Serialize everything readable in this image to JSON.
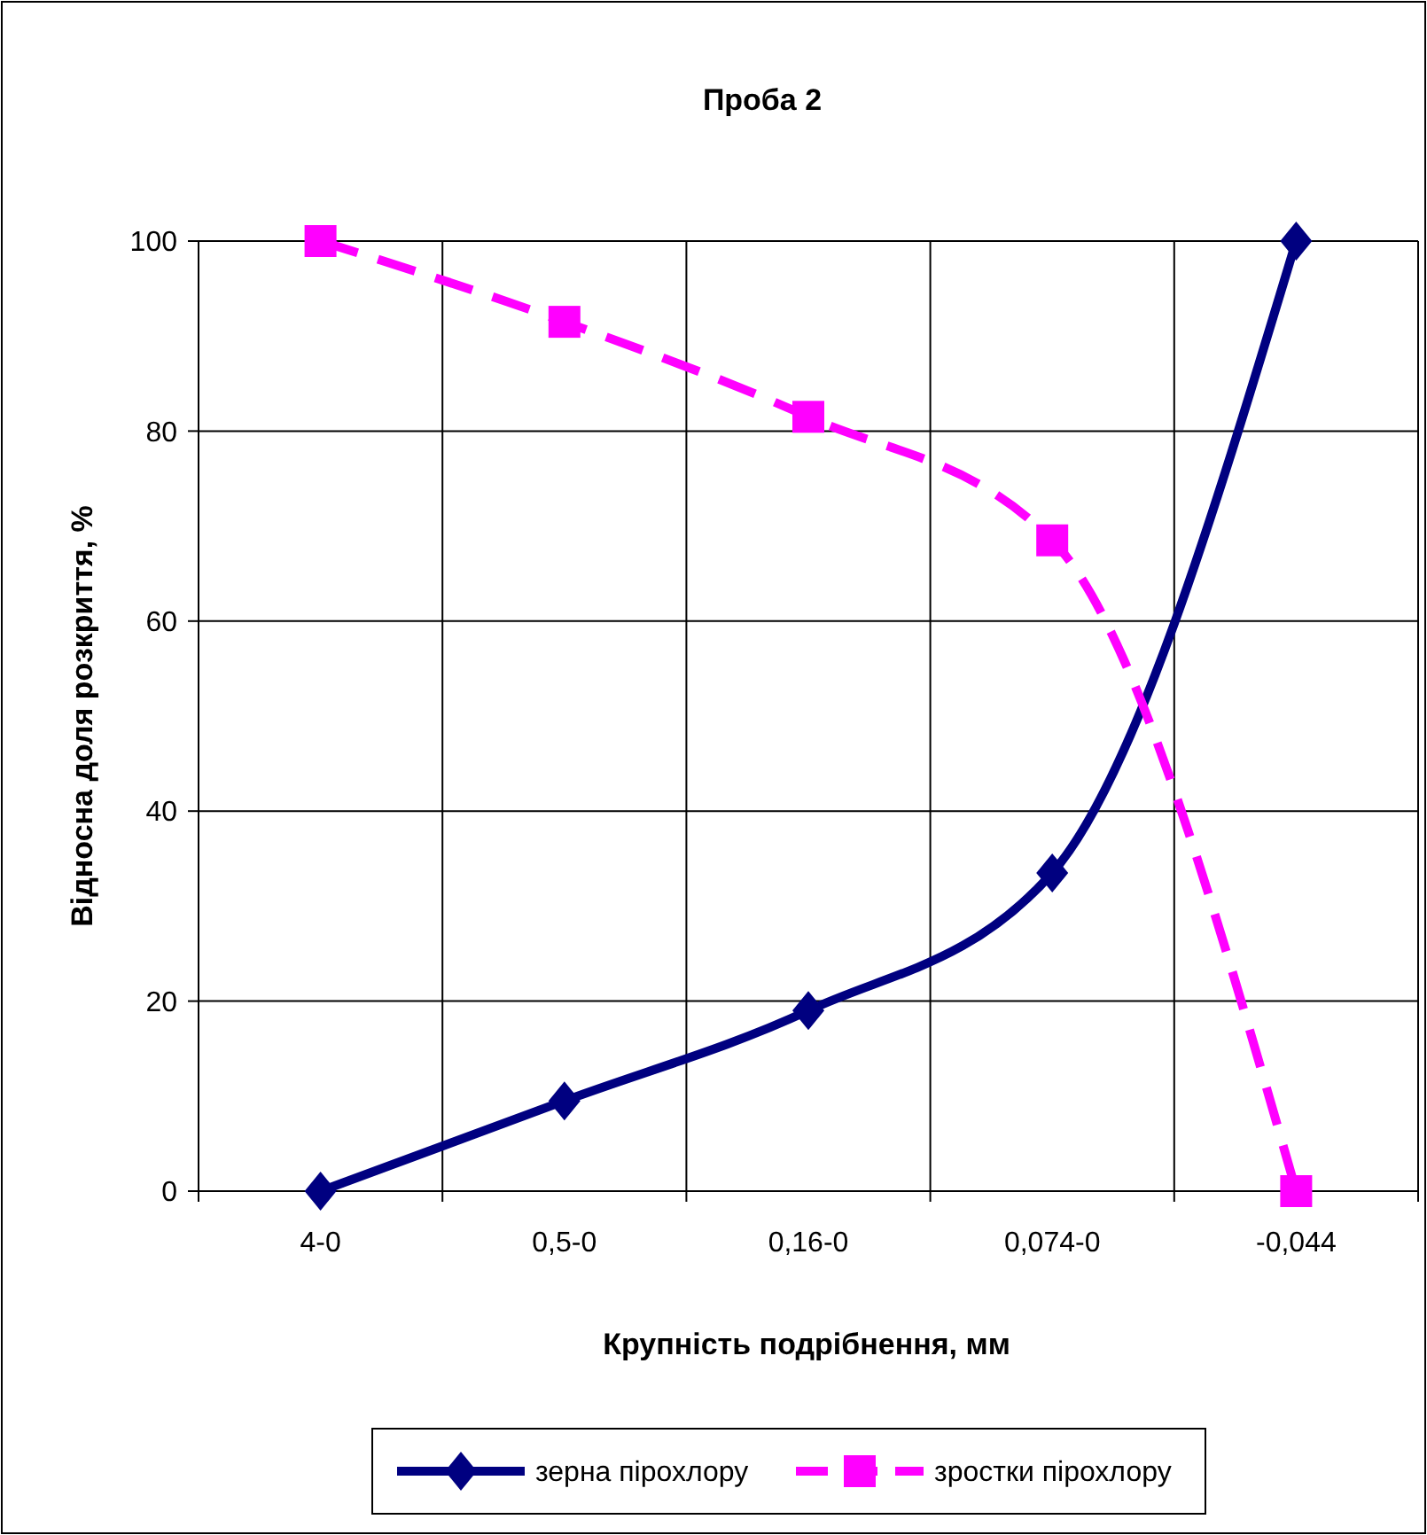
{
  "chart_data": {
    "type": "line",
    "title": "Проба 2",
    "xlabel": "Крупність подрібнення, мм",
    "ylabel": "Відносна доля розкриття, %",
    "categories": [
      "4-0",
      "0,5-0",
      "0,16-0",
      "0,074-0",
      "-0,044"
    ],
    "series": [
      {
        "name": "зерна пірохлору",
        "color": "#000080",
        "values": [
          0,
          9.5,
          19,
          33.5,
          100
        ],
        "marker": "diamond",
        "line_style": "solid"
      },
      {
        "name": "зростки пірохлору",
        "color": "#ff00ff",
        "values": [
          100,
          91.5,
          81.5,
          68.5,
          0
        ],
        "marker": "square",
        "line_style": "dashed"
      }
    ],
    "ylim": [
      0,
      100
    ],
    "yticks": [
      0,
      20,
      40,
      60,
      80,
      100
    ],
    "grid": true,
    "legend": "bottom"
  }
}
